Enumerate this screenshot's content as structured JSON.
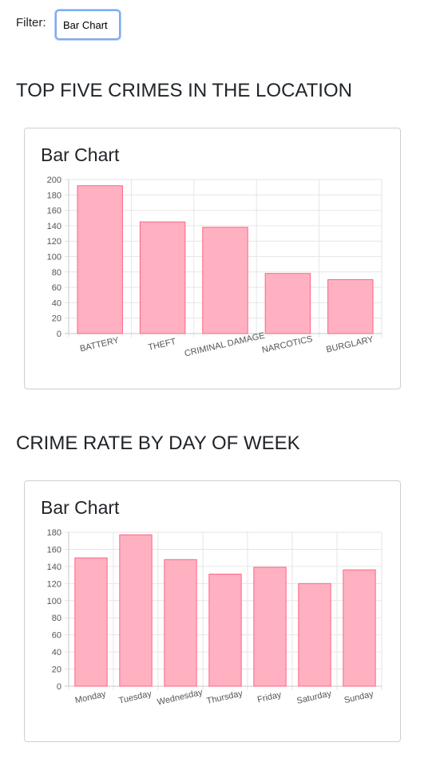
{
  "filter": {
    "label": "Filter:",
    "value": "Bar Chart"
  },
  "sections": [
    {
      "title": "TOP FIVE CRIMES IN THE LOCATION"
    },
    {
      "title": "CRIME RATE BY DAY OF WEEK"
    }
  ],
  "chart_data": [
    {
      "type": "bar",
      "title": "Bar Chart",
      "categories": [
        "BATTERY",
        "THEFT",
        "CRIMINAL DAMAGE",
        "NARCOTICS",
        "BURGLARY"
      ],
      "values": [
        192,
        145,
        138,
        78,
        70
      ],
      "ylim": [
        0,
        200
      ],
      "yticks": [
        0,
        20,
        40,
        60,
        80,
        100,
        120,
        140,
        160,
        180,
        200
      ],
      "grid": true,
      "bar_color": "#ffb1c1",
      "bar_border": "#ff6384"
    },
    {
      "type": "bar",
      "title": "Bar Chart",
      "categories": [
        "Monday",
        "Tuesday",
        "Wednesday",
        "Thursday",
        "Friday",
        "Saturday",
        "Sunday"
      ],
      "values": [
        150,
        177,
        148,
        131,
        139,
        120,
        136
      ],
      "ylim": [
        0,
        180
      ],
      "yticks": [
        0,
        20,
        40,
        60,
        80,
        100,
        120,
        140,
        160,
        180
      ],
      "grid": true,
      "bar_color": "#ffb1c1",
      "bar_border": "#ff6384"
    }
  ]
}
